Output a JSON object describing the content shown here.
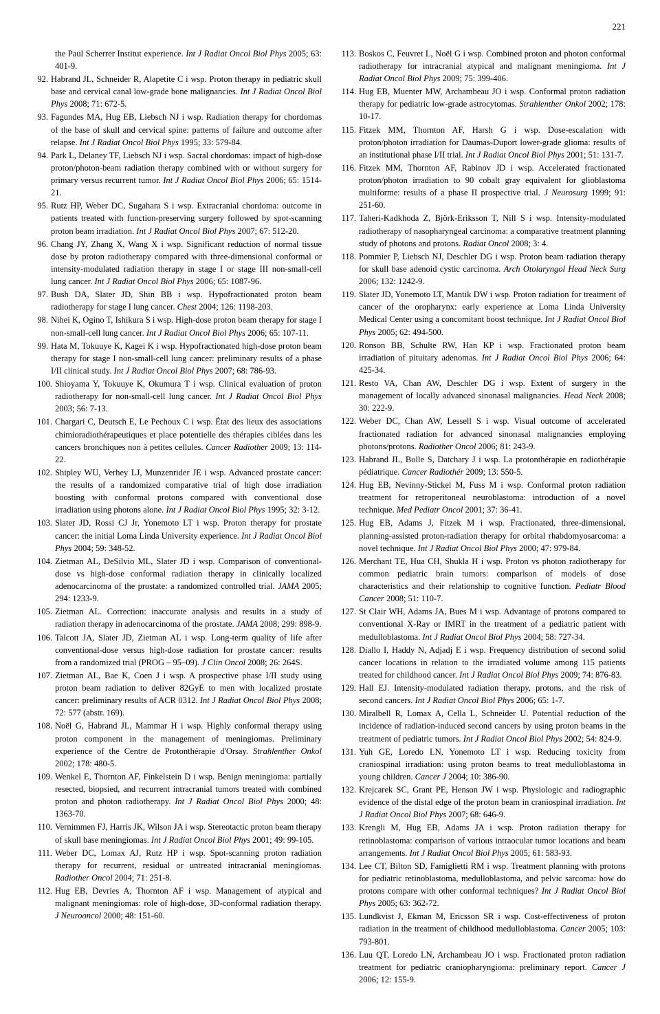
{
  "page_number": "221",
  "left_continuation": "the Paul Scherrer Institut experience. <span class=\"italic\">Int J Radiat Oncol Biol Phys</span> 2005; 63: 401-9.",
  "left_refs": [
    {
      "n": "92.",
      "t": "Habrand JL, Schneider R, Alapetite C i wsp. Proton therapy in pediatric skull base and cervical canal low-grade bone malignancies. <span class=\"italic\">Int J Radiat Oncol Biol Phys</span> 2008; 71: 672-5."
    },
    {
      "n": "93.",
      "t": "Fagundes MA, Hug EB, Liebsch NJ i wsp. Radiation therapy for chordomas of the base of skull and cervical spine: patterns of failure and outcome after relapse. <span class=\"italic\">Int J Radiat Oncol Biol Phys</span> 1995; 33: 579-84."
    },
    {
      "n": "94.",
      "t": "Park L, Delaney TF, Liebsch NJ i wsp. Sacral chordomas: impact of high-dose proton/photon-beam radiation therapy combined with or without surgery for primary versus recurrent tumor. <span class=\"italic\">Int J Radiat Oncol Biol Phys</span> 2006; 65: 1514-21."
    },
    {
      "n": "95.",
      "t": "Rutz HP, Weber DC, Sugahara S i wsp. Extracranial chordoma: outcome in patients treated with function-preserving surgery followed by spot-scanning proton beam irradiation. <span class=\"italic\">Int J Radiat Oncol Biol Phys</span> 2007; 67: 512-20."
    },
    {
      "n": "96.",
      "t": "Chang JY, Zhang X, Wang X i wsp. Significant reduction of normal tissue dose by proton radiotherapy compared with three-dimensional conformal or intensity-modulated radiation therapy in stage I or stage III non-small-cell lung cancer. <span class=\"italic\">Int J Radiat Oncol Biol Phys</span> 2006; 65: 1087-96."
    },
    {
      "n": "97.",
      "t": "Bush DA, Slater JD, Shin BB i wsp. Hypofractionated proton beam radiotherapy for stage I lung cancer. <span class=\"italic\">Chest</span> 2004; 126: 1198-203."
    },
    {
      "n": "98.",
      "t": "Nihei K, Ogino T, Ishikura S i wsp. High-dose proton beam therapy for stage I non-small-cell lung cancer. <span class=\"italic\">Int J Radiat Oncol Biol Phys</span> 2006; 65: 107-11."
    },
    {
      "n": "99.",
      "t": "Hata M, Tokuuye K, Kagei K i wsp. Hypofractionated high-dose proton beam therapy for stage I non-small-cell lung cancer: preliminary results of a phase I/II clinical study. <span class=\"italic\">Int J Radiat Oncol Biol Phys</span> 2007; 68: 786-93."
    },
    {
      "n": "100.",
      "t": "Shioyama Y, Tokuuye K, Okumura T i wsp. Clinical evaluation of proton radiotherapy for non-small-cell lung cancer. <span class=\"italic\">Int J Radiat Oncol Biol Phys</span> 2003; 56: 7-13."
    },
    {
      "n": "101.",
      "t": "Chargari C, Deutsch E, Le Pechoux C i wsp. État des lieux des associations chimioradiothérapeutiques et place potentielle des thérapies ciblées dans les cancers bronchiques non à petites cellules. <span class=\"italic\">Cancer Radiother</span> 2009; 13: 114-22."
    },
    {
      "n": "102.",
      "t": "Shipley WU, Verhey LJ, Munzenrider JE i wsp. Advanced prostate cancer: the results of a randomized comparative trial of high dose irradiation boosting with conformal protons compared with conventional dose irradiation using photons alone. <span class=\"italic\">Int J Radiat Oncol Biol Phys</span> 1995; 32: 3-12."
    },
    {
      "n": "103.",
      "t": "Slater JD, Rossi CJ Jr, Yonemoto LT i wsp. Proton therapy for prostate cancer: the initial Loma Linda University experience. <span class=\"italic\">Int J Radiat Oncol Biol Phys</span> 2004; 59: 348-52."
    },
    {
      "n": "104.",
      "t": "Zietman AL, DeSilvio ML, Slater JD i wsp. Comparison of conventional-dose vs high-dose conformal radiation therapy in clinically localized adenocarcinoma of the prostate: a randomized controlled trial. <span class=\"italic\">JAMA</span> 2005; 294: 1233-9."
    },
    {
      "n": "105.",
      "t": "Zietman AL. Correction: inaccurate analysis and results in a study of radiation therapy in adenocarcinoma of the prostate. <span class=\"italic\">JAMA</span> 2008; 299: 898-9."
    },
    {
      "n": "106.",
      "t": "Talcott JA, Slater JD, Zietman AL i wsp. Long-term quality of life after conventional-dose versus high-dose radiation for prostate cancer: results from a randomized trial (PROG – 95–09). <span class=\"italic\">J Clin Oncol</span> 2008; 26: 264S."
    },
    {
      "n": "107.",
      "t": "Zietman AL, Bae K, Coen J i wsp. A prospective phase I/II study using proton beam radiation to deliver 82GyE to men with localized prostate cancer: preliminary results of ACR 0312. <span class=\"italic\">Int J Radiat Oncol Biol Phys</span> 2008; 72: 577 (abstr. 169)."
    },
    {
      "n": "108.",
      "t": "Noël G, Habrand JL, Mammar H i wsp. Highly conformal therapy using proton component in the management of meningiomas. Preliminary experience of the Centre de Protonthérapie d'Orsay. <span class=\"italic\">Strahlenther Onkol</span> 2002; 178: 480-5."
    },
    {
      "n": "109.",
      "t": "Wenkel E, Thornton AF, Finkelstein D i wsp. Benign meningioma: partially resected, biopsied, and recurrent intracranial tumors treated with combined proton and photon radiotherapy. <span class=\"italic\">Int J Radiat Oncol Biol Phys</span> 2000; 48: 1363-70."
    },
    {
      "n": "110.",
      "t": "Vernimmen FJ, Harris JK, Wilson JA i wsp. Stereotactic proton beam therapy of skull base meningiomas. <span class=\"italic\">Int J Radiat Oncol Biol Phys</span> 2001; 49: 99-105."
    },
    {
      "n": "111.",
      "t": "Weber DC, Lomax AJ, Rutz HP i wsp. Spot-scanning proton radiation therapy for recurrent, residual or untreated intracranial meningiomas. <span class=\"italic\">Radiother Oncol</span> 2004; 71: 251-8."
    },
    {
      "n": "112.",
      "t": "Hug EB, Devries A, Thornton AF i wsp. Management of atypical and malignant meningiomas: role of high-dose, 3D-conformal radiation therapy. <span class=\"italic\">J Neurooncol</span> 2000; 48: 151-60."
    }
  ],
  "right_refs": [
    {
      "n": "113.",
      "t": "Boskos C, Feuvret L, Noël G i wsp. Combined proton and photon conformal radiotherapy for intracranial atypical and malignant meningioma. <span class=\"italic\">Int J Radiat Oncol Biol Phys</span> 2009; 75: 399-406."
    },
    {
      "n": "114.",
      "t": "Hug EB, Muenter MW, Archambeau JO i wsp. Conformal proton radiation therapy for pediatric low-grade astrocytomas. <span class=\"italic\">Strahlenther Onkol</span> 2002; 178: 10-17."
    },
    {
      "n": "115.",
      "t": "Fitzek MM, Thornton AF, Harsh G i wsp. Dose-escalation with proton/photon irradiation for Daumas-Duport lower-grade glioma: results of an institutional phase I/II trial. <span class=\"italic\">Int J Radiat Oncol Biol Phys</span> 2001; 51: 131-7."
    },
    {
      "n": "116.",
      "t": "Fitzek MM, Thornton AF, Rabinov JD i wsp. Accelerated fractionated proton/photon irradiation to 90 cobalt gray equivalent for glioblastoma multiforme: results of a phase II prospective trial. <span class=\"italic\">J Neurosurg</span> 1999; 91: 251-60."
    },
    {
      "n": "117.",
      "t": "Taheri-Kadkhoda Z, Björk-Eriksson T, Nill S i wsp. Intensity-modulated radiotherapy of nasopharyngeal carcinoma: a comparative treatment planning study of photons and protons. <span class=\"italic\">Radiat Oncol</span> 2008; 3: 4."
    },
    {
      "n": "118.",
      "t": "Pommier P, Liebsch NJ, Deschler DG i wsp. Proton beam radiation therapy for skull base adenoid cystic carcinoma. <span class=\"italic\">Arch Otolaryngol Head Neck Surg</span> 2006; 132: 1242-9."
    },
    {
      "n": "119.",
      "t": "Slater JD, Yonemoto LT, Mantik DW i wsp. Proton radiation for treatment of cancer of the oropharynx: early experience at Loma Linda University Medical Center using a concomitant boost technique. <span class=\"italic\">Int J Radiat Oncol Biol Phys</span> 2005; 62: 494-500."
    },
    {
      "n": "120.",
      "t": "Ronson BB, Schulte RW, Han KP i wsp. Fractionated proton beam irradiation of pituitary adenomas. <span class=\"italic\">Int J Radiat Oncol Biol Phys</span> 2006; 64: 425-34."
    },
    {
      "n": "121.",
      "t": "Resto VA, Chan AW, Deschler DG i wsp. Extent of surgery in the management of locally advanced sinonasal malignancies. <span class=\"italic\">Head Neck</span> 2008; 30: 222-9."
    },
    {
      "n": "122.",
      "t": "Weber DC, Chan AW, Lessell S i wsp. Visual outcome of accelerated fractionated radiation for advanced sinonasal malignancies employing photons/protons. <span class=\"italic\">Radiother Oncol</span> 2006; 81: 243-9."
    },
    {
      "n": "123.",
      "t": "Habrand JL, Bolle S, Datchary J i wsp. La protonthérapie en radiothérapie pédiatrique. <span class=\"italic\">Cancer Radiothér</span> 2009; 13: 550-5."
    },
    {
      "n": "124.",
      "t": "Hug EB, Nevinny-Stickel M, Fuss M i wsp. Conformal proton radiation treatment for retroperitoneal neuroblastoma: introduction of a novel technique. <span class=\"italic\">Med Pediatr Oncol</span> 2001; 37: 36-41."
    },
    {
      "n": "125.",
      "t": "Hug EB, Adams J, Fitzek M i wsp. Fractionated, three-dimensional, planning-assisted proton-radiation therapy for orbital rhabdomyosarcoma: a novel technique. <span class=\"italic\">Int J Radiat Oncol Biol Phys</span> 2000; 47: 979-84."
    },
    {
      "n": "126.",
      "t": "Merchant TE, Hua CH, Shukla H i wsp. Proton vs photon radiotherapy for common pediatric brain tumors: comparison of models of dose characteristics and their relationship to cognitive function. <span class=\"italic\">Pediatr Blood Cancer</span> 2008; 51: 110-7."
    },
    {
      "n": "127.",
      "t": "St Clair WH, Adams JA, Bues M i wsp. Advantage of protons compared to conventional X-Ray or IMRT in the treatment of a pediatric patient with medulloblastoma. <span class=\"italic\">Int J Radiat Oncol Biol Phys</span> 2004; 58: 727-34."
    },
    {
      "n": "128.",
      "t": "Diallo I, Haddy N, Adjadj E i wsp. Frequency distribution of second solid cancer locations in relation to the irradiated volume among 115 patients treated for childhood cancer. <span class=\"italic\">Int J Radiat Oncol Biol Phys</span> 2009; 74: 876-83."
    },
    {
      "n": "129.",
      "t": "Hall EJ. Intensity-modulated radiation therapy, protons, and the risk of second cancers. <span class=\"italic\">Int J Radiat Oncol Biol Phys</span> 2006; 65: 1-7."
    },
    {
      "n": "130.",
      "t": "Miralbell R, Lomax A, Cella L, Schneider U. Potential reduction of the incidence of radiation-induced second cancers by using proton beams in the treatment of pediatric tumors. <span class=\"italic\">Int J Radiat Oncol Biol Phys</span> 2002; 54: 824-9."
    },
    {
      "n": "131.",
      "t": "Yuh GE, Loredo LN, Yonemoto LT i wsp. Reducing toxicity from craniospinal irradiation: using proton beams to treat medulloblastoma in young children. <span class=\"italic\">Cancer J</span> 2004; 10: 386-90."
    },
    {
      "n": "132.",
      "t": "Krejcarek SC, Grant PE, Henson JW i wsp. Physiologic and radiographic evidence of the distal edge of the proton beam in craniospinal irradiation. <span class=\"italic\">Int J Radiat Oncol Biol Phys</span> 2007; 68: 646-9."
    },
    {
      "n": "133.",
      "t": "Krengli M, Hug EB, Adams JA i wsp. Proton radiation therapy for retinoblastoma: comparison of various intraocular tumor locations and beam arrangements. <span class=\"italic\">Int J Radiat Oncol Biol Phys</span> 2005; 61: 583-93."
    },
    {
      "n": "134.",
      "t": "Lee CT, Bilton SD, Famiglietti RM i wsp. Treatment planning with protons for pediatric retinoblastoma, medulloblastoma, and pelvic sarcoma: how do protons compare with other conformal techniques? <span class=\"italic\">Int J Radiat Oncol Biol Phys</span> 2005; 63: 362-72."
    },
    {
      "n": "135.",
      "t": "Lundkvist J, Ekman M, Ericsson SR i wsp. Cost-effectiveness of proton radiation in the treatment of childhood medulloblastoma. <span class=\"italic\">Cancer</span> 2005; 103: 793-801."
    },
    {
      "n": "136.",
      "t": "Luu QT, Loredo LN, Archambeau JO i wsp. Fractionated proton radiation treatment for pediatric craniopharyngioma: preliminary report. <span class=\"italic\">Cancer J</span> 2006; 12: 155-9."
    }
  ]
}
